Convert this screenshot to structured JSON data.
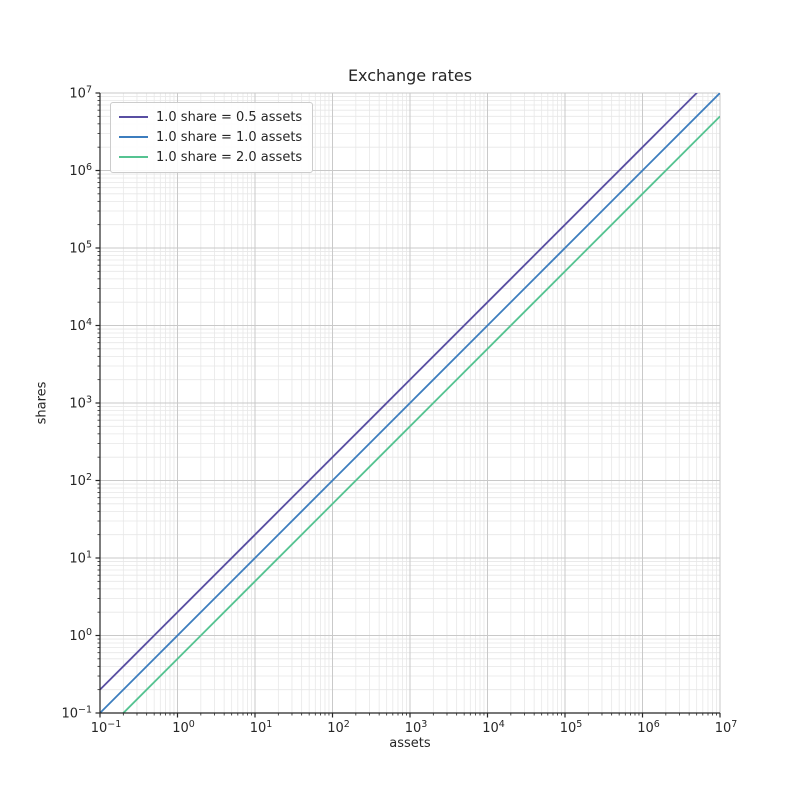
{
  "chart_data": {
    "type": "line",
    "title": "Exchange rates",
    "xlabel": "assets",
    "ylabel": "shares",
    "x_scale": "log",
    "y_scale": "log",
    "xlim": [
      0.1,
      10000000
    ],
    "ylim": [
      0.1,
      10000000
    ],
    "x_tick_exponents": [
      -1,
      0,
      1,
      2,
      3,
      4,
      5,
      6,
      7
    ],
    "y_tick_exponents": [
      -1,
      0,
      1,
      2,
      3,
      4,
      5,
      6,
      7
    ],
    "grid": {
      "major": true,
      "minor": true
    },
    "legend_position": "upper left",
    "series": [
      {
        "name": "1.0 share = 0.5 assets",
        "color": "#584ea2",
        "assets_per_share": 0.5,
        "endpoints": [
          [
            0.1,
            0.2
          ],
          [
            10000000,
            20000000
          ]
        ]
      },
      {
        "name": "1.0 share = 1.0 assets",
        "color": "#3c7dbe",
        "assets_per_share": 1.0,
        "endpoints": [
          [
            0.1,
            0.1
          ],
          [
            10000000,
            10000000
          ]
        ]
      },
      {
        "name": "1.0 share = 2.0 assets",
        "color": "#55c391",
        "assets_per_share": 2.0,
        "endpoints": [
          [
            0.1,
            0.05
          ],
          [
            10000000,
            5000000
          ]
        ]
      }
    ],
    "colors": {
      "background": "#ffffff",
      "axis": "#262626",
      "text": "#262626",
      "grid_major": "#c9c9c9",
      "grid_minor": "#e7e7e7",
      "legend_border": "#cccccc"
    }
  }
}
